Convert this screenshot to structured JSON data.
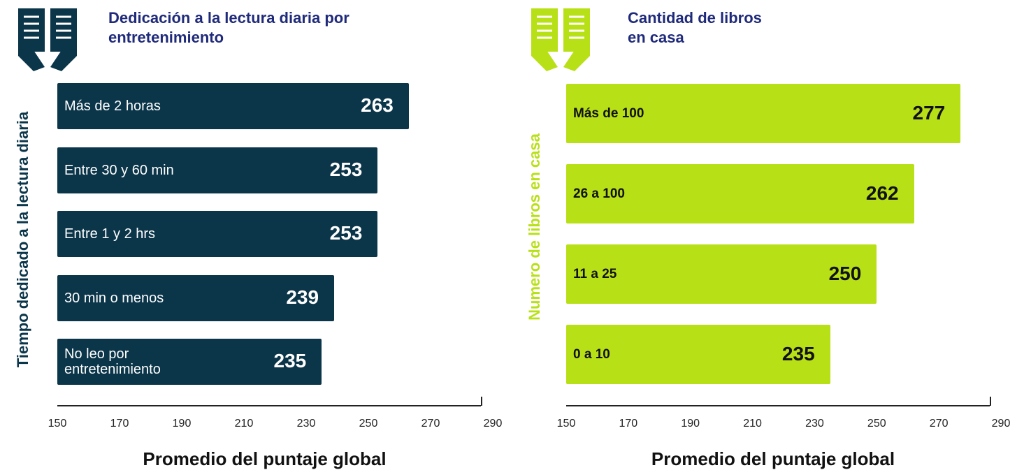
{
  "chart_data": [
    {
      "type": "bar",
      "orientation": "horizontal",
      "title": "Dedicación a la lectura diaria por entretenimiento",
      "ylabel": "Tiempo dedicado a la lectura diaria",
      "xlabel": "Promedio del puntaje global",
      "categories": [
        "Más de 2 horas",
        "Entre 30 y 60 min",
        "Entre 1 y 2 hrs",
        "30 min o menos",
        "No leo por entretenimiento"
      ],
      "values": [
        263,
        253,
        253,
        239,
        235
      ],
      "color": "#0b3549",
      "xlim": [
        150,
        290
      ],
      "xticks": [
        150,
        170,
        190,
        210,
        230,
        250,
        270,
        290
      ]
    },
    {
      "type": "bar",
      "orientation": "horizontal",
      "title": "Cantidad de libros en casa",
      "ylabel": "Numero de libros en casa",
      "xlabel": "Promedio del puntaje global",
      "categories": [
        "Más de 100",
        "26 a 100",
        "11 a 25",
        "0 a 10"
      ],
      "values": [
        277,
        262,
        250,
        235
      ],
      "color": "#b8e016",
      "xlim": [
        150,
        290
      ],
      "xticks": [
        150,
        170,
        190,
        210,
        230,
        250,
        270,
        290
      ]
    }
  ]
}
